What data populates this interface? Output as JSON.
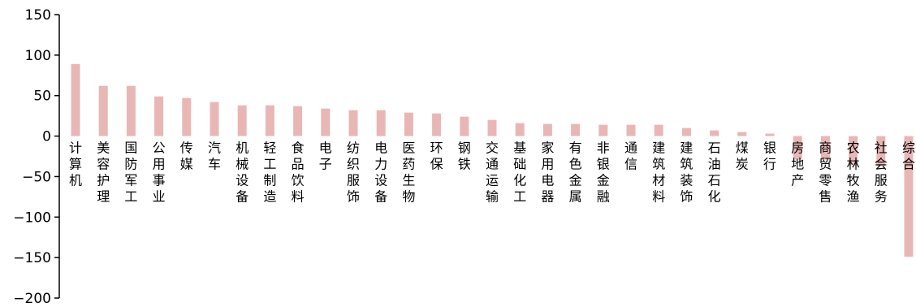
{
  "chart_data": {
    "type": "bar",
    "title": "",
    "xlabel": "",
    "ylabel": "",
    "ylim": [
      -200,
      150
    ],
    "yticks": [
      150,
      100,
      50,
      0,
      -50,
      -100,
      -150,
      -200
    ],
    "bar_color": "#e8b7b5",
    "grid": false,
    "legend": "none",
    "categories": [
      "计算机",
      "美容护理",
      "国防军工",
      "公用事业",
      "传媒",
      "汽车",
      "机械设备",
      "轻工制造",
      "食品饮料",
      "电子",
      "纺织服饰",
      "电力设备",
      "医药生物",
      "环保",
      "钢铁",
      "交通运输",
      "基础化工",
      "家用电器",
      "有色金属",
      "非银金融",
      "通信",
      "建筑材料",
      "建筑装饰",
      "石油石化",
      "煤炭",
      "银行",
      "房地产",
      "商贸零售",
      "农林牧渔",
      "社会服务",
      "综合"
    ],
    "values": [
      89,
      62,
      62,
      49,
      47,
      42,
      38,
      38,
      37,
      34,
      32,
      32,
      29,
      28,
      24,
      20,
      16,
      15,
      15,
      14,
      14,
      14,
      10,
      7,
      5,
      3,
      -29,
      -29,
      -36,
      -37,
      -149
    ]
  }
}
